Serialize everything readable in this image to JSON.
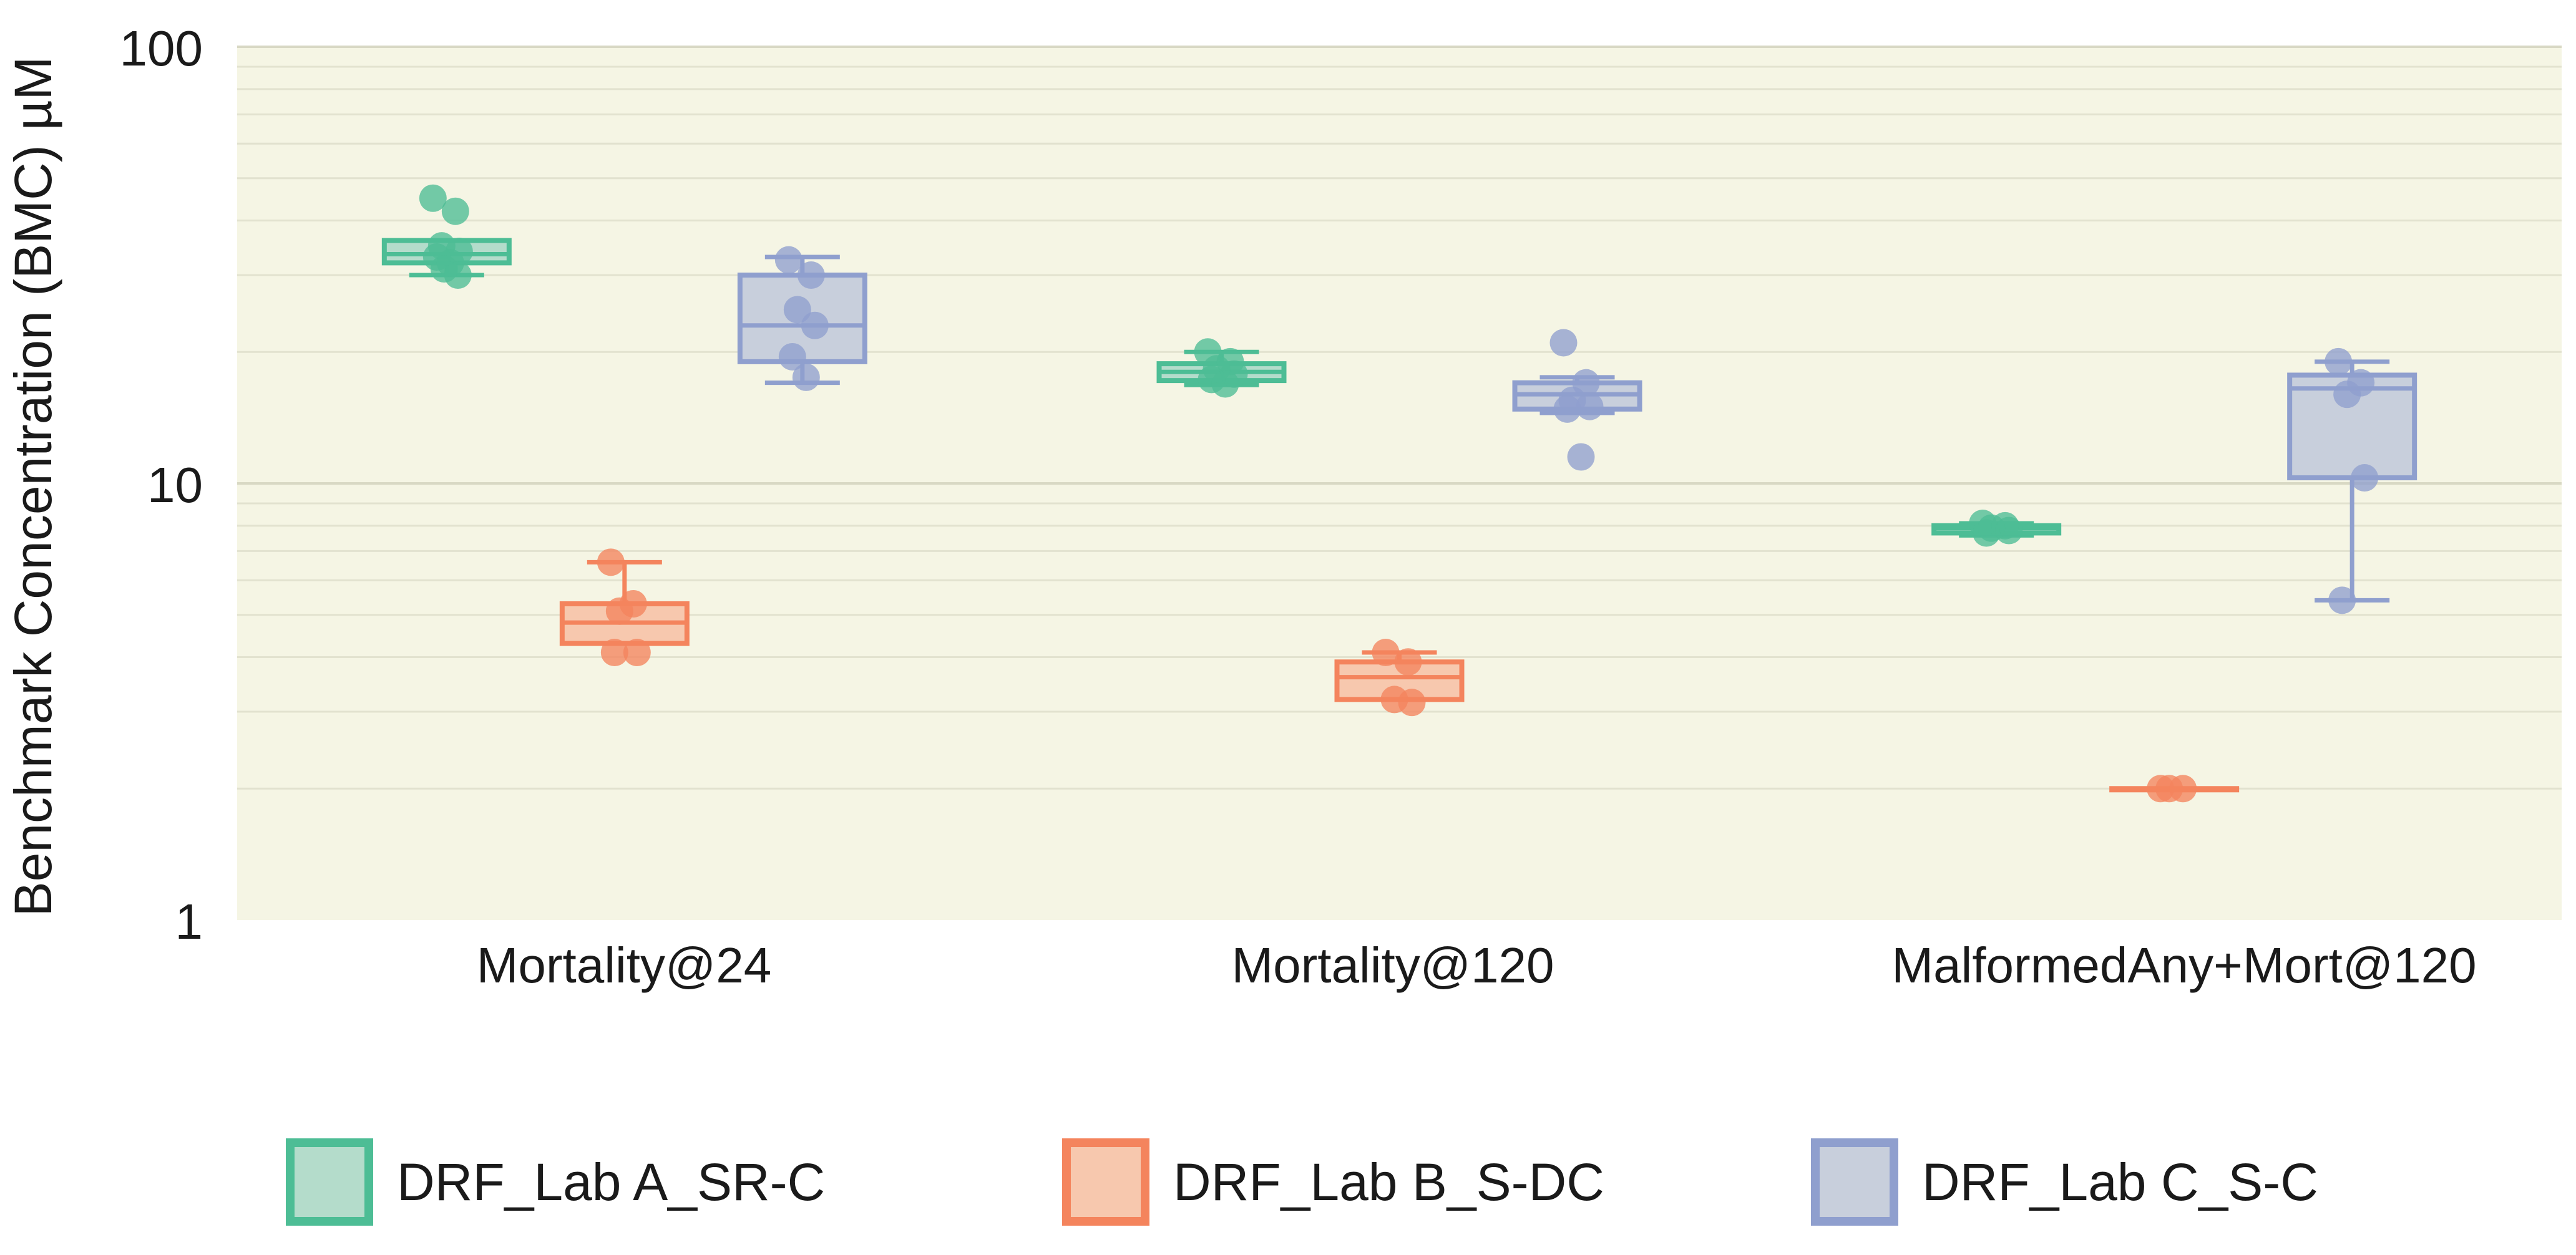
{
  "chart_data": {
    "type": "box",
    "ylabel": "Benchmark Concentration (BMC) µM",
    "yscale": "log",
    "ylim": [
      1,
      100
    ],
    "yticks": [
      {
        "value": 100,
        "label": "100"
      },
      {
        "value": 10,
        "label": "10"
      },
      {
        "value": 1,
        "label": "1"
      }
    ],
    "categories": [
      "Mortality@24",
      "Mortality@120",
      "MalformedAny+Mort@120"
    ],
    "series": [
      {
        "name": "DRF_Lab A_SR-C",
        "color": "#4dbd95",
        "fill": "#b4dccb",
        "boxes": [
          {
            "q1": 32.0,
            "median": 33.5,
            "q3": 36.0,
            "whisker_low": 30.0,
            "whisker_high": 36.0,
            "points": [
              45.0,
              42.0,
              35.0,
              34.0,
              33.0,
              32.0,
              31.0,
              30.0
            ]
          },
          {
            "q1": 17.2,
            "median": 18.0,
            "q3": 18.8,
            "whisker_low": 16.8,
            "whisker_high": 20.0,
            "points": [
              20.0,
              19.0,
              18.3,
              17.8,
              17.3,
              16.9
            ]
          },
          {
            "q1": 7.7,
            "median": 7.9,
            "q3": 8.0,
            "whisker_low": 7.6,
            "whisker_high": 8.1,
            "points": [
              8.1,
              8.0,
              7.9,
              7.8,
              7.7
            ]
          }
        ]
      },
      {
        "name": "DRF_Lab B_S-DC",
        "color": "#f4845d",
        "fill": "#f7c8ae",
        "boxes": [
          {
            "q1": 4.3,
            "median": 4.8,
            "q3": 5.3,
            "whisker_low": 4.3,
            "whisker_high": 6.6,
            "points": [
              6.6,
              5.3,
              5.1,
              4.1,
              4.1
            ]
          },
          {
            "q1": 3.2,
            "median": 3.6,
            "q3": 3.9,
            "whisker_low": 3.2,
            "whisker_high": 4.1,
            "points": [
              4.1,
              3.9,
              3.2,
              3.15
            ]
          },
          {
            "q1": 2.0,
            "median": 2.0,
            "q3": 2.0,
            "whisker_low": 2.0,
            "whisker_high": 2.0,
            "points": [
              2.0,
              2.0,
              2.0
            ]
          }
        ]
      },
      {
        "name": "DRF_Lab C_S-C",
        "color": "#8f9fce",
        "fill": "#c8cfdc",
        "boxes": [
          {
            "q1": 19.0,
            "median": 23.0,
            "q3": 30.0,
            "whisker_low": 17.0,
            "whisker_high": 33.0,
            "points": [
              32.5,
              30.0,
              25.0,
              23.0,
              19.5,
              17.5
            ]
          },
          {
            "q1": 14.8,
            "median": 16.0,
            "q3": 17.0,
            "whisker_low": 14.5,
            "whisker_high": 17.5,
            "points": [
              21.0,
              17.0,
              15.5,
              15.0,
              14.8,
              11.5
            ]
          },
          {
            "q1": 10.3,
            "median": 16.5,
            "q3": 17.7,
            "whisker_low": 5.4,
            "whisker_high": 19.0,
            "points": [
              19.0,
              17.0,
              16.0,
              10.3,
              5.4
            ]
          }
        ]
      }
    ],
    "legend_position": "bottom"
  }
}
